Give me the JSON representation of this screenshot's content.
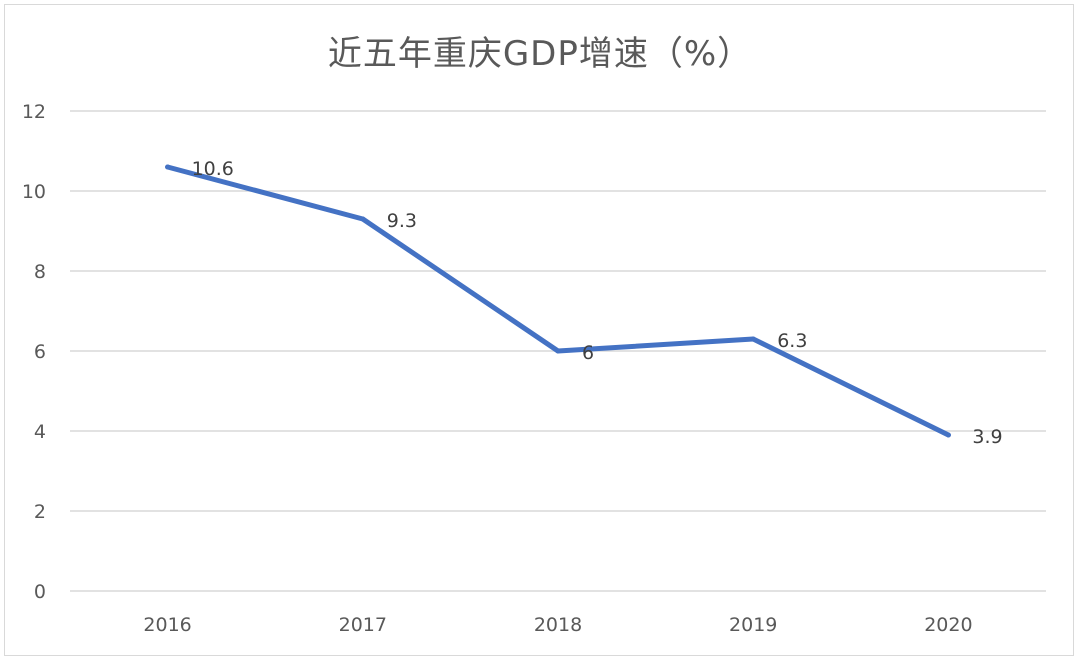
{
  "chart_data": {
    "type": "line",
    "title": "近五年重庆GDP增速（%）",
    "categories": [
      "2016",
      "2017",
      "2018",
      "2019",
      "2020"
    ],
    "series": [
      {
        "values": [
          10.6,
          9.3,
          6,
          6.3,
          3.9
        ],
        "data_labels": [
          "10.6",
          "9.3",
          "6",
          "6.3",
          "3.9"
        ],
        "color": "#4472c4"
      }
    ],
    "xlabel": "",
    "ylabel": "",
    "ylim": [
      0,
      12
    ],
    "yticks": [
      "0",
      "2",
      "4",
      "6",
      "8",
      "10",
      "12"
    ],
    "grid": true,
    "legend": "none",
    "gridline_color": "#d9d9d9"
  }
}
